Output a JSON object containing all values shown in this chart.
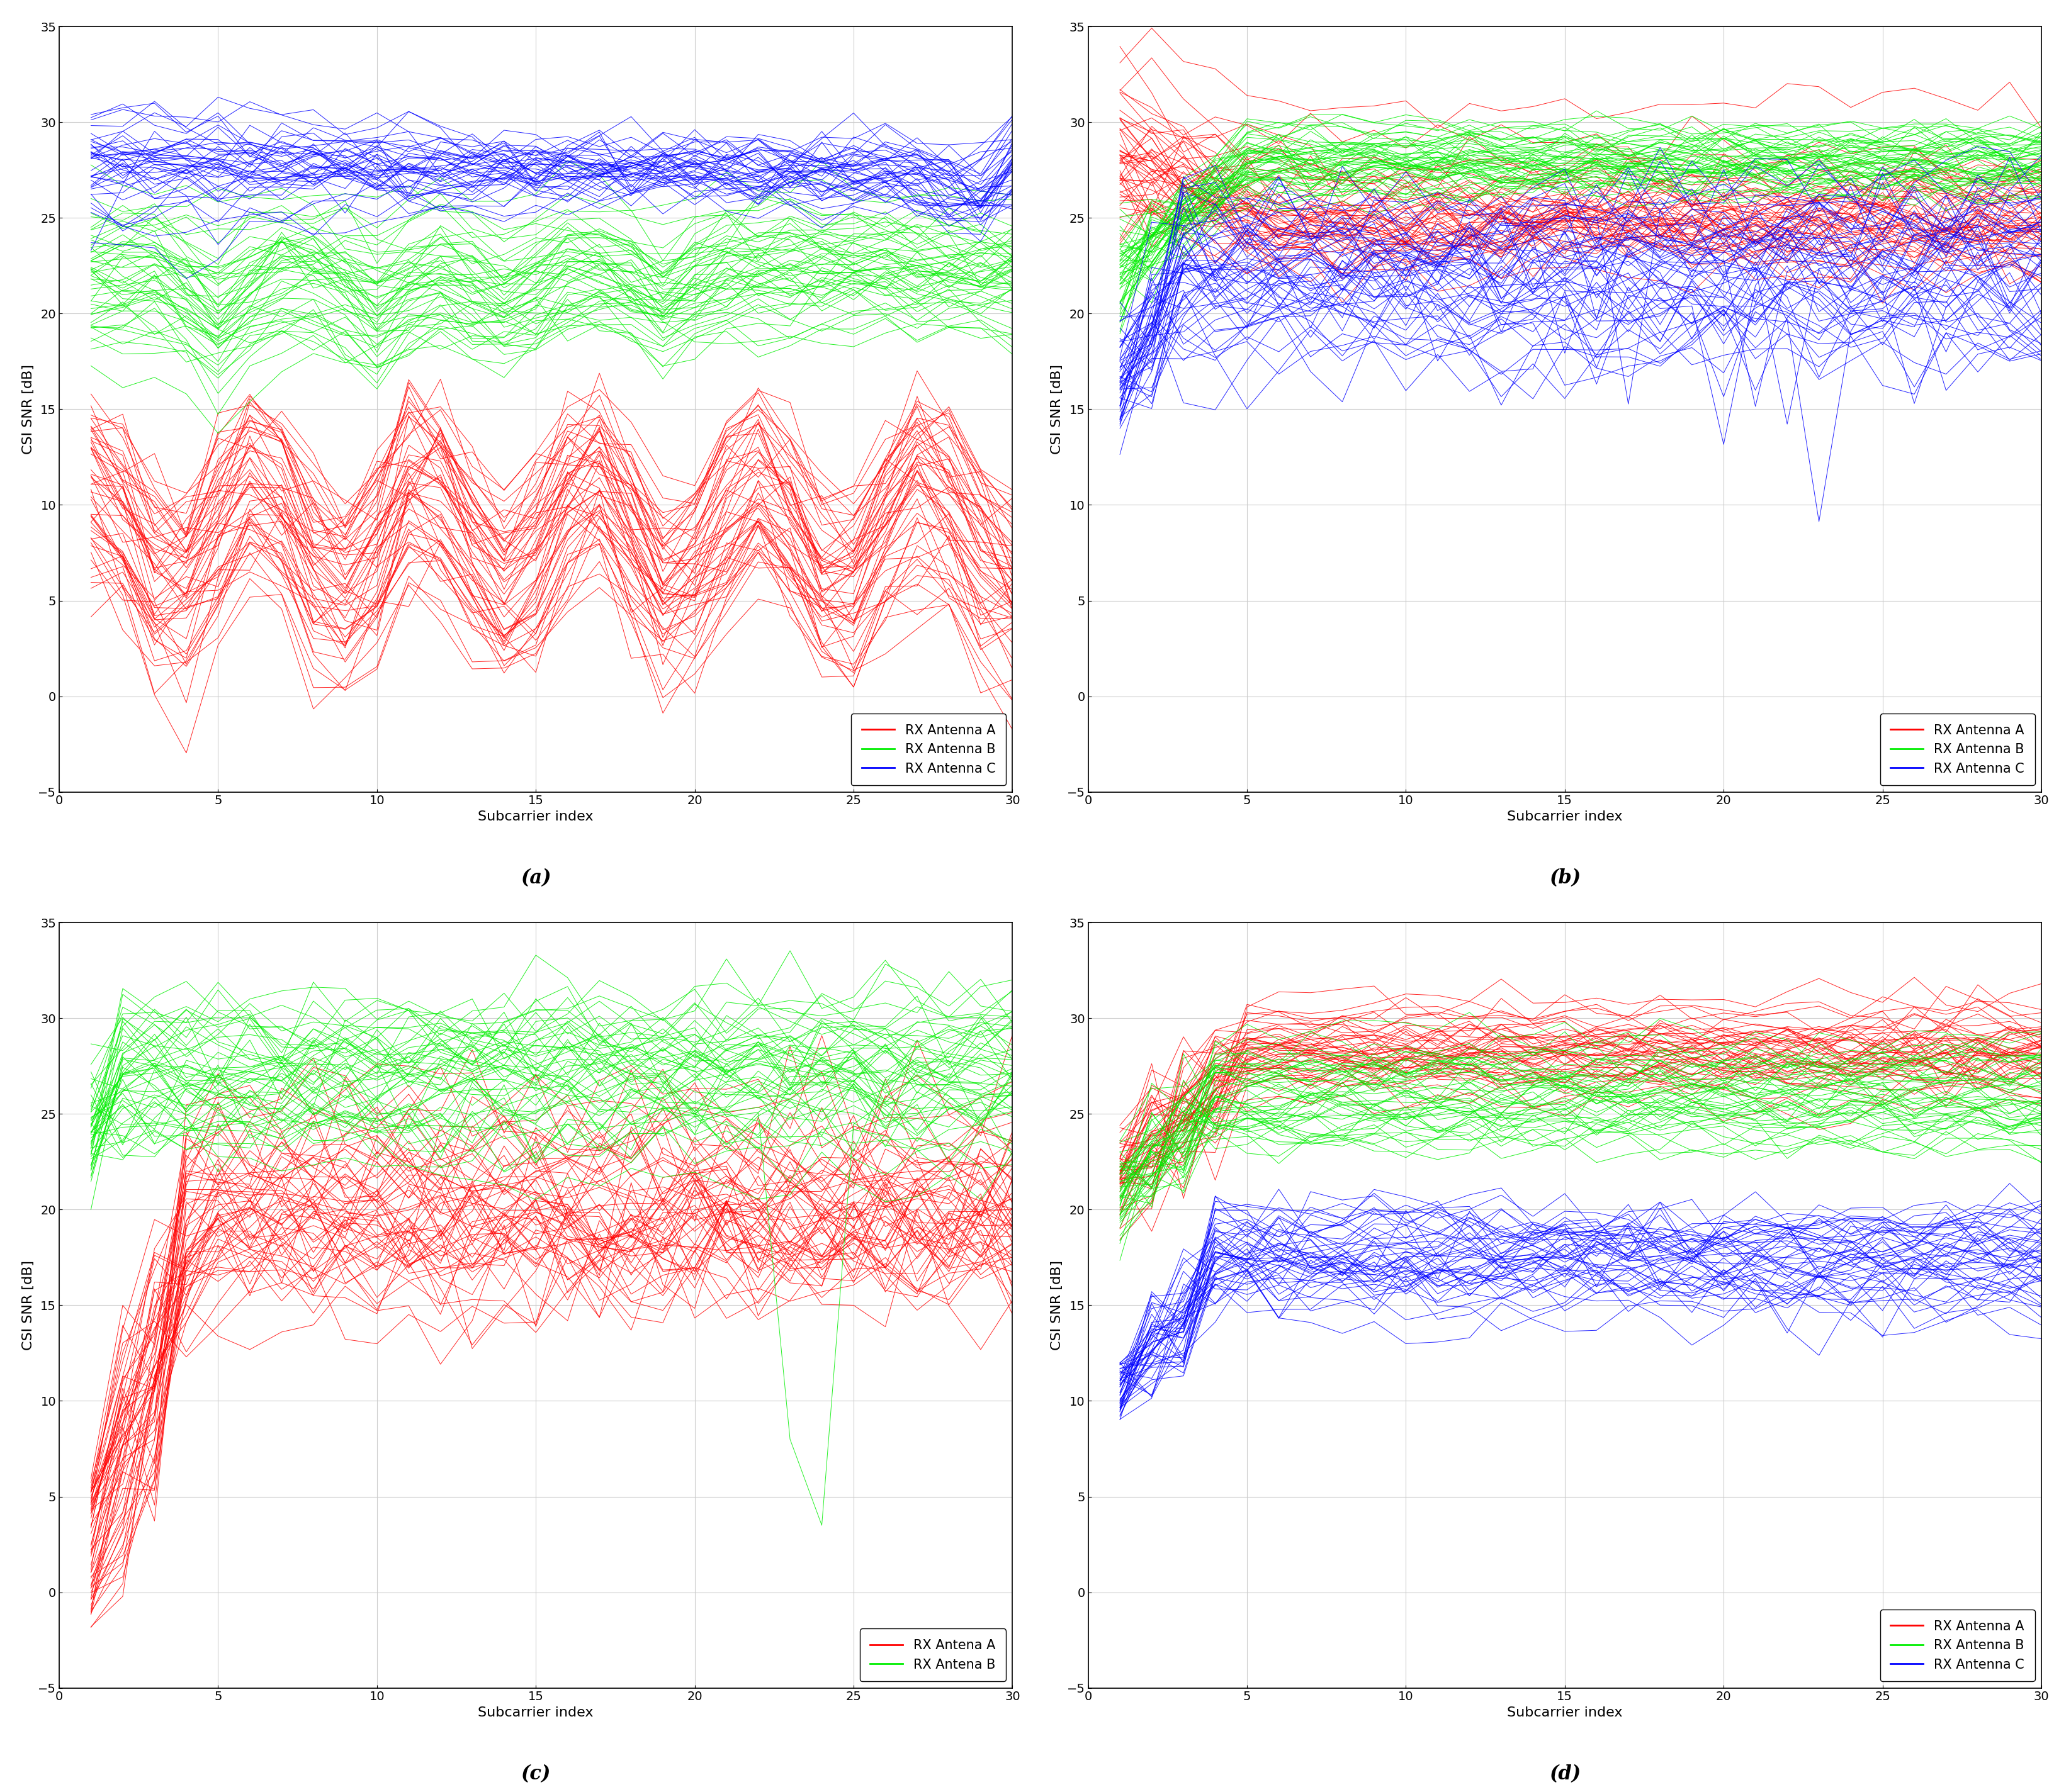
{
  "n_subcarriers": 30,
  "ylim": [
    -5,
    35
  ],
  "yticks": [
    -5,
    0,
    5,
    10,
    15,
    20,
    25,
    30,
    35
  ],
  "xlim": [
    0,
    30
  ],
  "xticks": [
    0,
    5,
    10,
    15,
    20,
    25,
    30
  ],
  "xlabel": "Subcarrier index",
  "ylabel": "CSI SNR [dB]",
  "red": "#FF0000",
  "green": "#00EE00",
  "blue": "#0000FF",
  "subplot_labels": [
    "(a)",
    "(b)",
    "(c)",
    "(d)"
  ],
  "legend_a": [
    [
      "RX Antenna A",
      "red"
    ],
    [
      "RX Antenna B",
      "green"
    ],
    [
      "RX Antenna C",
      "blue"
    ]
  ],
  "legend_b": [
    [
      "RX Antenna A",
      "red"
    ],
    [
      "RX Antenna B",
      "green"
    ],
    [
      "RX Antenna C",
      "blue"
    ]
  ],
  "legend_c": [
    [
      "RX Antena A",
      "red"
    ],
    [
      "RX Antena B",
      "green"
    ]
  ],
  "legend_d": [
    [
      "RX Antenna A",
      "red"
    ],
    [
      "RX Antenna B",
      "green"
    ],
    [
      "RX Antenna C",
      "blue"
    ]
  ],
  "line_alpha": 0.85,
  "line_width": 0.7,
  "background_color": "#FFFFFF",
  "grid_color": "#CCCCCC",
  "subplot_label_fontsize": 22,
  "axis_label_fontsize": 16,
  "tick_fontsize": 14,
  "legend_fontsize": 15
}
